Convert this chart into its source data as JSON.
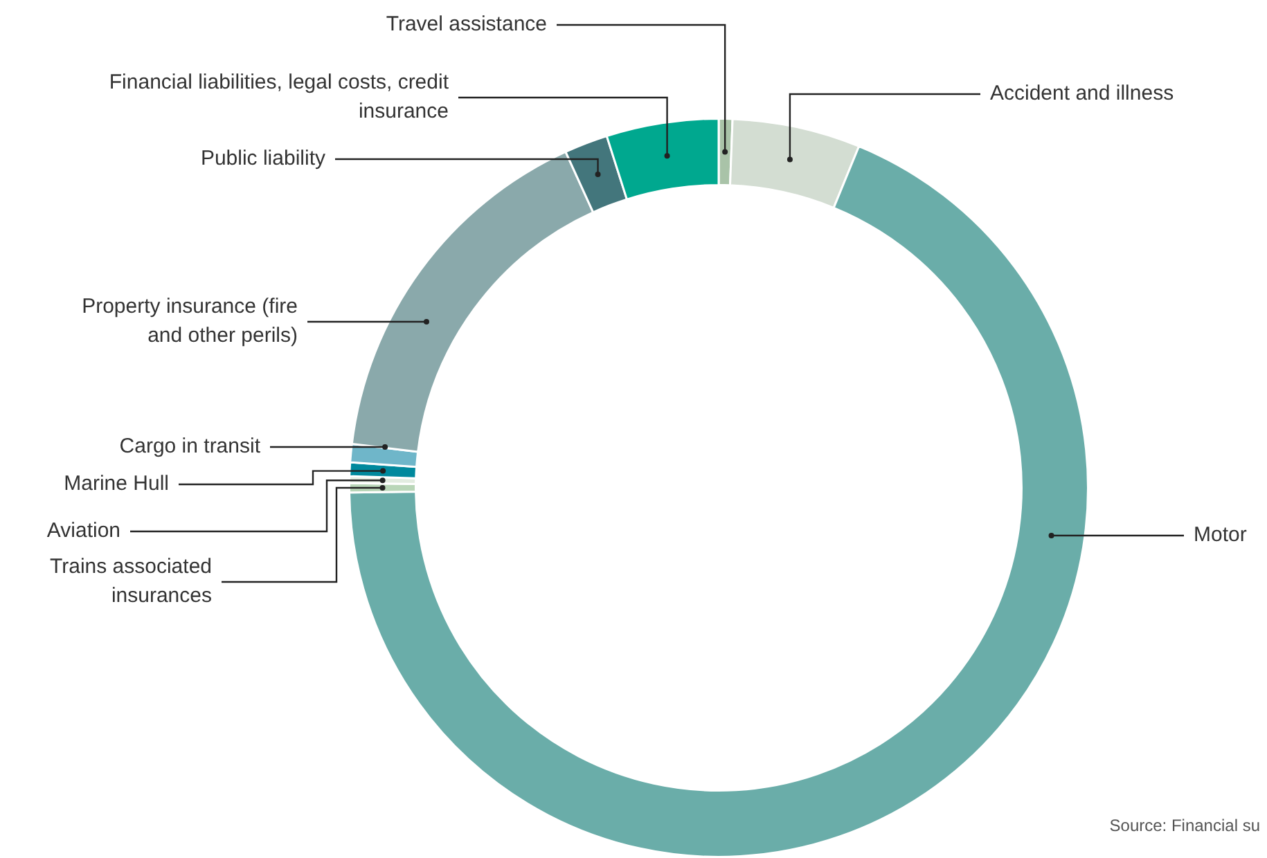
{
  "chart_data": {
    "type": "donut",
    "categories": [
      "Travel assistance",
      "Accident and illness",
      "Motor",
      "Trains associated insurances",
      "Aviation",
      "Marine Hull",
      "Cargo in transit",
      "Property insurance (fire and other perils)",
      "Public liability",
      "Financial liabilities, legal costs, credit insurance"
    ],
    "values": [
      0.6,
      5.6,
      68.6,
      0.4,
      0.3,
      0.6,
      0.8,
      16.3,
      1.9,
      4.9
    ],
    "colors": [
      "#a9c3a8",
      "#d3ddd2",
      "#6aada9",
      "#b9d6b8",
      "#e2ece0",
      "#00899d",
      "#6fb6c9",
      "#8aa9ab",
      "#43767c",
      "#00a88f"
    ],
    "annotations": [
      "Source: Financial su"
    ],
    "legend": false
  }
}
